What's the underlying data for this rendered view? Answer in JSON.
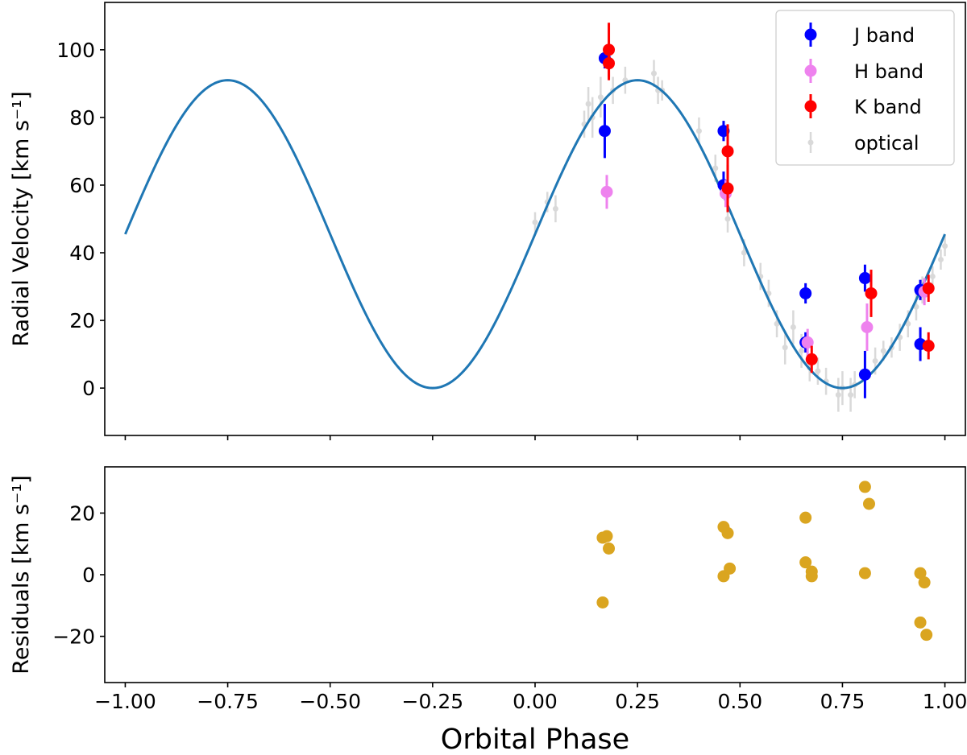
{
  "chart_data": [
    {
      "type": "scatter",
      "panel": "top",
      "ylabel": "Radial Velocity [km s⁻¹]",
      "xlim": [
        -1.05,
        1.05
      ],
      "ylim": [
        -14,
        114
      ],
      "xticks": [
        -1.0,
        -0.75,
        -0.5,
        -0.25,
        0.0,
        0.25,
        0.5,
        0.75,
        1.0
      ],
      "yticks": [
        0,
        20,
        40,
        60,
        80,
        100
      ],
      "ytick_labels": [
        "0",
        "20",
        "40",
        "60",
        "80",
        "100"
      ],
      "model": {
        "name": "fit",
        "color": "#1f77b4",
        "gamma": 45.5,
        "amplitude": 45.5,
        "phase_of_max": 0.25,
        "x_range": [
          -1.0,
          1.0
        ]
      },
      "series": [
        {
          "name": "J band",
          "color": "#0000ff",
          "points": [
            {
              "x": 0.17,
              "y": 97.5,
              "err": 3
            },
            {
              "x": 0.17,
              "y": 76.0,
              "err": 8
            },
            {
              "x": 0.46,
              "y": 76.0,
              "err": 3
            },
            {
              "x": 0.46,
              "y": 60.0,
              "err": 4
            },
            {
              "x": 0.66,
              "y": 28.0,
              "err": 3
            },
            {
              "x": 0.66,
              "y": 13.5,
              "err": 3
            },
            {
              "x": 0.805,
              "y": 32.5,
              "err": 4
            },
            {
              "x": 0.805,
              "y": 4.0,
              "err": 7
            },
            {
              "x": 0.94,
              "y": 13.0,
              "err": 5
            },
            {
              "x": 0.94,
              "y": 29.0,
              "err": 3
            }
          ]
        },
        {
          "name": "H band",
          "color": "#ee82ee",
          "points": [
            {
              "x": 0.175,
              "y": 58.0,
              "err": 5
            },
            {
              "x": 0.465,
              "y": 57.5,
              "err": 4
            },
            {
              "x": 0.665,
              "y": 13.5,
              "err": 4
            },
            {
              "x": 0.81,
              "y": 18.0,
              "err": 7
            },
            {
              "x": 0.95,
              "y": 28.5,
              "err": 4
            }
          ]
        },
        {
          "name": "K band",
          "color": "#ff0000",
          "points": [
            {
              "x": 0.18,
              "y": 100.0,
              "err": 8
            },
            {
              "x": 0.18,
              "y": 96.0,
              "err": 5
            },
            {
              "x": 0.47,
              "y": 70.0,
              "err": 8
            },
            {
              "x": 0.47,
              "y": 59.0,
              "err": 7
            },
            {
              "x": 0.675,
              "y": 8.5,
              "err": 4
            },
            {
              "x": 0.82,
              "y": 28.0,
              "err": 7
            },
            {
              "x": 0.96,
              "y": 12.5,
              "err": 4
            },
            {
              "x": 0.96,
              "y": 29.5,
              "err": 4
            }
          ]
        },
        {
          "name": "optical",
          "color": "#d9d9d9",
          "points": [
            {
              "x": 0.0,
              "y": 49,
              "err": 3
            },
            {
              "x": 0.03,
              "y": 55,
              "err": 3
            },
            {
              "x": 0.05,
              "y": 53,
              "err": 4
            },
            {
              "x": 0.12,
              "y": 78,
              "err": 4
            },
            {
              "x": 0.13,
              "y": 84,
              "err": 5
            },
            {
              "x": 0.14,
              "y": 80,
              "err": 6
            },
            {
              "x": 0.16,
              "y": 86,
              "err": 6
            },
            {
              "x": 0.19,
              "y": 88,
              "err": 4
            },
            {
              "x": 0.22,
              "y": 91,
              "err": 4
            },
            {
              "x": 0.29,
              "y": 93,
              "err": 4
            },
            {
              "x": 0.3,
              "y": 88,
              "err": 4
            },
            {
              "x": 0.31,
              "y": 88,
              "err": 3
            },
            {
              "x": 0.4,
              "y": 76,
              "err": 4
            },
            {
              "x": 0.44,
              "y": 65,
              "err": 4
            },
            {
              "x": 0.47,
              "y": 50,
              "err": 4
            },
            {
              "x": 0.51,
              "y": 40,
              "err": 4
            },
            {
              "x": 0.55,
              "y": 33,
              "err": 4
            },
            {
              "x": 0.57,
              "y": 28,
              "err": 4
            },
            {
              "x": 0.59,
              "y": 19,
              "err": 4
            },
            {
              "x": 0.61,
              "y": 12,
              "err": 5
            },
            {
              "x": 0.63,
              "y": 18,
              "err": 5
            },
            {
              "x": 0.65,
              "y": 11,
              "err": 5
            },
            {
              "x": 0.67,
              "y": 6,
              "err": 4
            },
            {
              "x": 0.69,
              "y": 5,
              "err": 4
            },
            {
              "x": 0.71,
              "y": 2,
              "err": 4
            },
            {
              "x": 0.74,
              "y": -2,
              "err": 5
            },
            {
              "x": 0.75,
              "y": 0,
              "err": 5
            },
            {
              "x": 0.77,
              "y": -2,
              "err": 5
            },
            {
              "x": 0.78,
              "y": 1,
              "err": 4
            },
            {
              "x": 0.83,
              "y": 8,
              "err": 4
            },
            {
              "x": 0.85,
              "y": 11,
              "err": 3
            },
            {
              "x": 0.87,
              "y": 12,
              "err": 3
            },
            {
              "x": 0.89,
              "y": 15,
              "err": 4
            },
            {
              "x": 0.91,
              "y": 19,
              "err": 4
            },
            {
              "x": 0.93,
              "y": 24,
              "err": 4
            },
            {
              "x": 0.945,
              "y": 29,
              "err": 4
            },
            {
              "x": 0.97,
              "y": 33,
              "err": 3
            },
            {
              "x": 0.99,
              "y": 38,
              "err": 3
            },
            {
              "x": 1.0,
              "y": 42,
              "err": 3
            }
          ]
        }
      ],
      "legend": {
        "position": "top-right",
        "entries": [
          "J band",
          "H band",
          "K band",
          "optical"
        ]
      }
    },
    {
      "type": "scatter",
      "panel": "bottom",
      "xlabel": "Orbital Phase",
      "ylabel": "Residuals [km s⁻¹]",
      "xlim": [
        -1.05,
        1.05
      ],
      "ylim": [
        -35,
        35
      ],
      "xticks": [
        -1.0,
        -0.75,
        -0.5,
        -0.25,
        0.0,
        0.25,
        0.5,
        0.75,
        1.0
      ],
      "xtick_labels": [
        "−1.00",
        "−0.75",
        "−0.50",
        "−0.25",
        "0.00",
        "0.25",
        "0.50",
        "0.75",
        "1.00"
      ],
      "yticks": [
        -20,
        0,
        20
      ],
      "ytick_labels": [
        "−20",
        "0",
        "20"
      ],
      "series": [
        {
          "name": "residuals",
          "color": "#daa520",
          "points": [
            {
              "x": 0.165,
              "y": 12.0
            },
            {
              "x": 0.175,
              "y": 12.5
            },
            {
              "x": 0.18,
              "y": 8.5
            },
            {
              "x": 0.165,
              "y": -9.0
            },
            {
              "x": 0.46,
              "y": 15.5
            },
            {
              "x": 0.47,
              "y": 13.5
            },
            {
              "x": 0.475,
              "y": 2.0
            },
            {
              "x": 0.46,
              "y": -0.5
            },
            {
              "x": 0.66,
              "y": 18.5
            },
            {
              "x": 0.66,
              "y": 4.0
            },
            {
              "x": 0.675,
              "y": 1.0
            },
            {
              "x": 0.675,
              "y": -0.5
            },
            {
              "x": 0.805,
              "y": 28.5
            },
            {
              "x": 0.815,
              "y": 23.0
            },
            {
              "x": 0.805,
              "y": 0.5
            },
            {
              "x": 0.94,
              "y": 0.5
            },
            {
              "x": 0.95,
              "y": -2.5
            },
            {
              "x": 0.94,
              "y": -15.5
            },
            {
              "x": 0.955,
              "y": -19.5
            }
          ]
        }
      ]
    }
  ]
}
